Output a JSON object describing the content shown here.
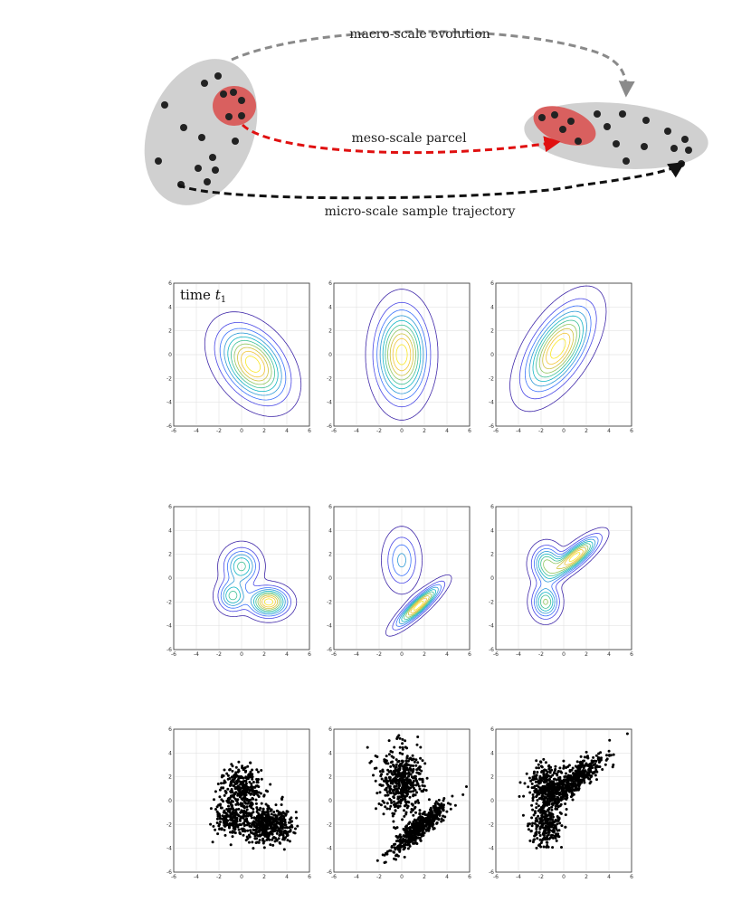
{
  "schematic": {
    "macro_label": "macro-scale evolution",
    "meso_label": "meso-scale parcel",
    "micro_label": "micro-scale sample trajectory",
    "colors": {
      "cloud": "#d0d0d0",
      "parcel": "#d9605f",
      "dot": "#222222",
      "macro_arrow": "#8a8a8a",
      "meso_arrow": "#e01010",
      "micro_arrow": "#111111"
    }
  },
  "panels": {
    "first_panel_label": "time",
    "first_panel_subscript": "1",
    "tick_values": [
      "-6",
      "-4",
      "-2",
      "0",
      "2",
      "4",
      "6"
    ],
    "axis_range": [
      -6,
      6
    ]
  },
  "chart_data": [
    {
      "type": "contour",
      "row": "gaussian density",
      "panels": [
        {
          "mean": [
            1.0,
            -0.8
          ],
          "covariance": [
            [
              3.0,
              -1.2
            ],
            [
              -1.2,
              3.2
            ]
          ]
        },
        {
          "mean": [
            0.0,
            0.0
          ],
          "covariance": [
            [
              1.7,
              0.0
            ],
            [
              0.0,
              5.0
            ]
          ]
        },
        {
          "mean": [
            -0.5,
            0.5
          ],
          "covariance": [
            [
              3.0,
              2.2
            ],
            [
              2.2,
              4.6
            ]
          ]
        }
      ],
      "xlim": [
        -6,
        6
      ],
      "ylim": [
        -6,
        6
      ],
      "grid": true
    },
    {
      "type": "contour",
      "row": "gaussian mixture density",
      "panels": [
        {
          "components": [
            {
              "weight": 0.33,
              "mean": [
                0.0,
                1.0
              ],
              "covariance": [
                [
                  0.9,
                  0.0
                ],
                [
                  0.0,
                  0.9
                ]
              ]
            },
            {
              "weight": 0.22,
              "mean": [
                -0.8,
                -1.5
              ],
              "covariance": [
                [
                  0.6,
                  0.0
                ],
                [
                  0.0,
                  0.6
                ]
              ]
            },
            {
              "weight": 0.45,
              "mean": [
                2.4,
                -2.0
              ],
              "covariance": [
                [
                  1.0,
                  0.0
                ],
                [
                  0.0,
                  0.5
                ]
              ]
            }
          ]
        },
        {
          "components": [
            {
              "weight": 0.45,
              "mean": [
                0.0,
                1.5
              ],
              "covariance": [
                [
                  0.8,
                  0.0
                ],
                [
                  0.0,
                  2.0
                ]
              ]
            },
            {
              "weight": 0.55,
              "mean": [
                1.5,
                -2.3
              ],
              "covariance": [
                [
                  1.4,
                  1.1
                ],
                [
                  1.1,
                  1.1
                ]
              ]
            }
          ]
        },
        {
          "components": [
            {
              "weight": 0.3,
              "mean": [
                -1.5,
                1.2
              ],
              "covariance": [
                [
                  0.6,
                  0.0
                ],
                [
                  0.0,
                  0.8
                ]
              ]
            },
            {
              "weight": 0.25,
              "mean": [
                -1.6,
                -2.0
              ],
              "covariance": [
                [
                  0.5,
                  0.0
                ],
                [
                  0.0,
                  0.7
                ]
              ]
            },
            {
              "weight": 0.45,
              "mean": [
                1.0,
                1.8
              ],
              "covariance": [
                [
                  1.5,
                  1.0
                ],
                [
                  1.0,
                  1.0
                ]
              ]
            }
          ]
        }
      ],
      "xlim": [
        -6,
        6
      ],
      "ylim": [
        -6,
        6
      ],
      "grid": true
    },
    {
      "type": "scatter",
      "row": "samples",
      "samples_per_panel": 1000,
      "marker_color": "#000000",
      "xlim": [
        -6,
        6
      ],
      "ylim": [
        -6,
        6
      ],
      "grid": true
    }
  ]
}
